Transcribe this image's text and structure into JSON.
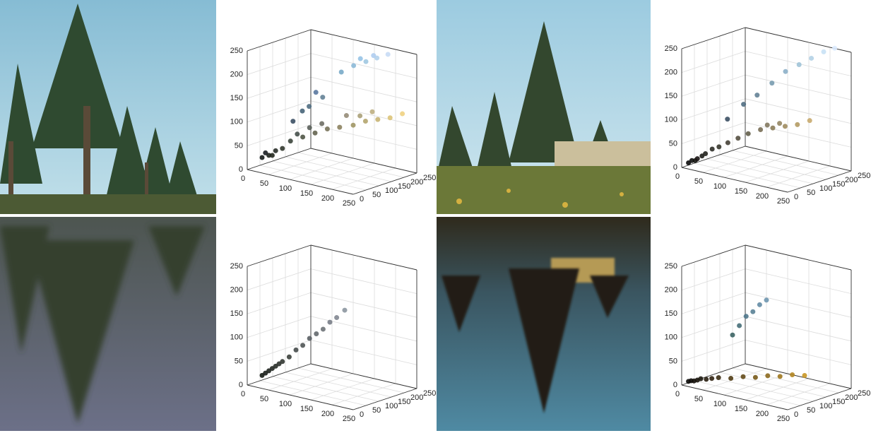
{
  "chart_data": [
    {
      "type": "scatter3d",
      "xlim": [
        0,
        250
      ],
      "ylim": [
        0,
        250
      ],
      "zlim": [
        0,
        250
      ],
      "xticks": [
        0,
        50,
        100,
        150,
        200,
        250
      ],
      "yticks": [
        0,
        50,
        100,
        150,
        200,
        250
      ],
      "zticks": [
        0,
        50,
        100,
        150,
        200,
        250
      ],
      "grid": true,
      "series": [
        {
          "x": [
            20,
            30,
            40,
            25,
            50,
            35,
            60,
            80,
            100,
            70,
            90,
            120,
            110,
            140,
            160,
            180,
            200,
            220,
            240,
            170,
            150,
            190,
            60,
            80,
            100,
            90,
            70,
            120,
            140,
            160,
            180,
            200,
            150,
            175
          ],
          "y": [
            25,
            35,
            45,
            30,
            55,
            40,
            70,
            85,
            100,
            80,
            95,
            115,
            110,
            130,
            150,
            165,
            180,
            195,
            210,
            160,
            140,
            175,
            80,
            110,
            130,
            120,
            100,
            170,
            185,
            200,
            210,
            220,
            195,
            205
          ],
          "z": [
            25,
            30,
            40,
            35,
            45,
            30,
            60,
            70,
            80,
            75,
            90,
            90,
            100,
            95,
            100,
            110,
            115,
            120,
            130,
            120,
            120,
            130,
            100,
            130,
            150,
            160,
            120,
            200,
            215,
            225,
            235,
            245,
            230,
            240
          ]
        }
      ]
    },
    {
      "type": "scatter3d",
      "xlim": [
        0,
        250
      ],
      "ylim": [
        0,
        250
      ],
      "zlim": [
        0,
        250
      ],
      "xticks": [
        0,
        50,
        100,
        150,
        200,
        250
      ],
      "yticks": [
        0,
        50,
        100,
        150,
        200,
        250
      ],
      "zticks": [
        0,
        50,
        100,
        150,
        200,
        250
      ],
      "grid": true,
      "series": [
        {
          "x": [
            10,
            15,
            20,
            25,
            30,
            35,
            45,
            55,
            70,
            85,
            100,
            120,
            140,
            160,
            180,
            200,
            130,
            150,
            60,
            80,
            100,
            120,
            140,
            160,
            180,
            200,
            220
          ],
          "y": [
            10,
            15,
            20,
            20,
            30,
            35,
            45,
            55,
            65,
            80,
            95,
            110,
            125,
            140,
            155,
            170,
            120,
            135,
            80,
            110,
            130,
            155,
            175,
            195,
            210,
            225,
            235
          ],
          "z": [
            10,
            15,
            15,
            20,
            25,
            30,
            40,
            45,
            55,
            65,
            75,
            85,
            90,
            95,
            100,
            110,
            95,
            100,
            100,
            130,
            150,
            175,
            200,
            215,
            230,
            245,
            255
          ]
        }
      ]
    },
    {
      "type": "scatter3d",
      "xlim": [
        0,
        250
      ],
      "ylim": [
        0,
        250
      ],
      "zlim": [
        0,
        250
      ],
      "xticks": [
        0,
        50,
        100,
        150,
        200,
        250
      ],
      "yticks": [
        0,
        50,
        100,
        150,
        200,
        250
      ],
      "zticks": [
        0,
        50,
        100,
        150,
        200,
        250
      ],
      "grid": true,
      "series": [
        {
          "x": [
            20,
            25,
            30,
            35,
            40,
            45,
            50,
            60,
            70,
            80,
            90,
            100,
            110,
            120,
            130,
            140
          ],
          "y": [
            25,
            30,
            35,
            40,
            45,
            50,
            55,
            65,
            75,
            85,
            95,
            105,
            115,
            125,
            135,
            150
          ],
          "z": [
            20,
            25,
            30,
            35,
            40,
            45,
            50,
            60,
            75,
            85,
            100,
            110,
            120,
            135,
            145,
            160
          ]
        }
      ]
    },
    {
      "type": "scatter3d",
      "xlim": [
        0,
        250
      ],
      "ylim": [
        0,
        250
      ],
      "zlim": [
        0,
        250
      ],
      "xticks": [
        0,
        50,
        100,
        150,
        200,
        250
      ],
      "yticks": [
        0,
        50,
        100,
        150,
        200,
        250
      ],
      "zticks": [
        0,
        50,
        100,
        150,
        200,
        250
      ],
      "grid": true,
      "series": [
        {
          "x": [
            10,
            15,
            20,
            25,
            30,
            40,
            50,
            60,
            80,
            100,
            120,
            140,
            160,
            180,
            200,
            60,
            70,
            80,
            90,
            100,
            110
          ],
          "y": [
            10,
            12,
            15,
            20,
            25,
            30,
            35,
            45,
            60,
            75,
            90,
            105,
            120,
            135,
            150,
            100,
            110,
            120,
            130,
            140,
            150
          ],
          "z": [
            8,
            10,
            10,
            12,
            15,
            15,
            18,
            20,
            20,
            25,
            25,
            30,
            30,
            35,
            35,
            100,
            120,
            140,
            150,
            165,
            175
          ]
        }
      ]
    }
  ]
}
